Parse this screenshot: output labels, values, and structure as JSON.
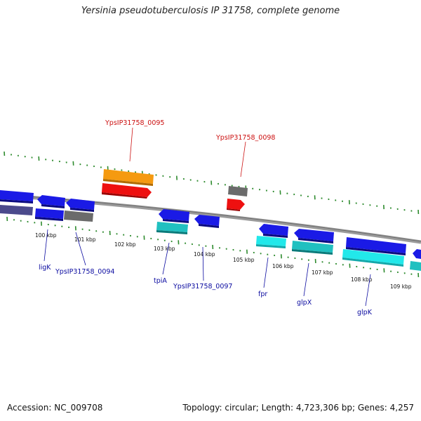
{
  "title": "Yersinia pseudotuberculosis IP 31758, complete genome",
  "accession": "Accession: NC_009708",
  "summary": "Topology: circular; Length: 4,723,306 bp; Genes: 4,257",
  "colors": {
    "backbone": "#8a8a8a",
    "tick": "#2e8b2e",
    "gene_blue": "#1a1ae6",
    "gene_navy": "#4b4a8c",
    "gene_gray": "#6b6b6b",
    "gene_teal": "#20c0c0",
    "gene_cyan": "#22e8ea",
    "gene_orange": "#f59a10",
    "gene_red": "#ee1010",
    "label_blue": "#0a0aa0",
    "label_red": "#cc1010"
  },
  "kbp_labels": [
    "100 kbp",
    "101 kbp",
    "102 kbp",
    "103 kbp",
    "104 kbp",
    "105 kbp",
    "106 kbp",
    "107 kbp",
    "108 kbp",
    "109 kbp"
  ],
  "gene_labels": {
    "ligK": "ligK",
    "g0094": "YpsIP31758_0094",
    "tpiA": "tpiA",
    "g0097": "YpsIP31758_0097",
    "fpr": "fpr",
    "glpX": "glpX",
    "glpK": "glpK",
    "g0095": "YpsIP31758_0095",
    "g0098": "YpsIP31758_0098"
  }
}
